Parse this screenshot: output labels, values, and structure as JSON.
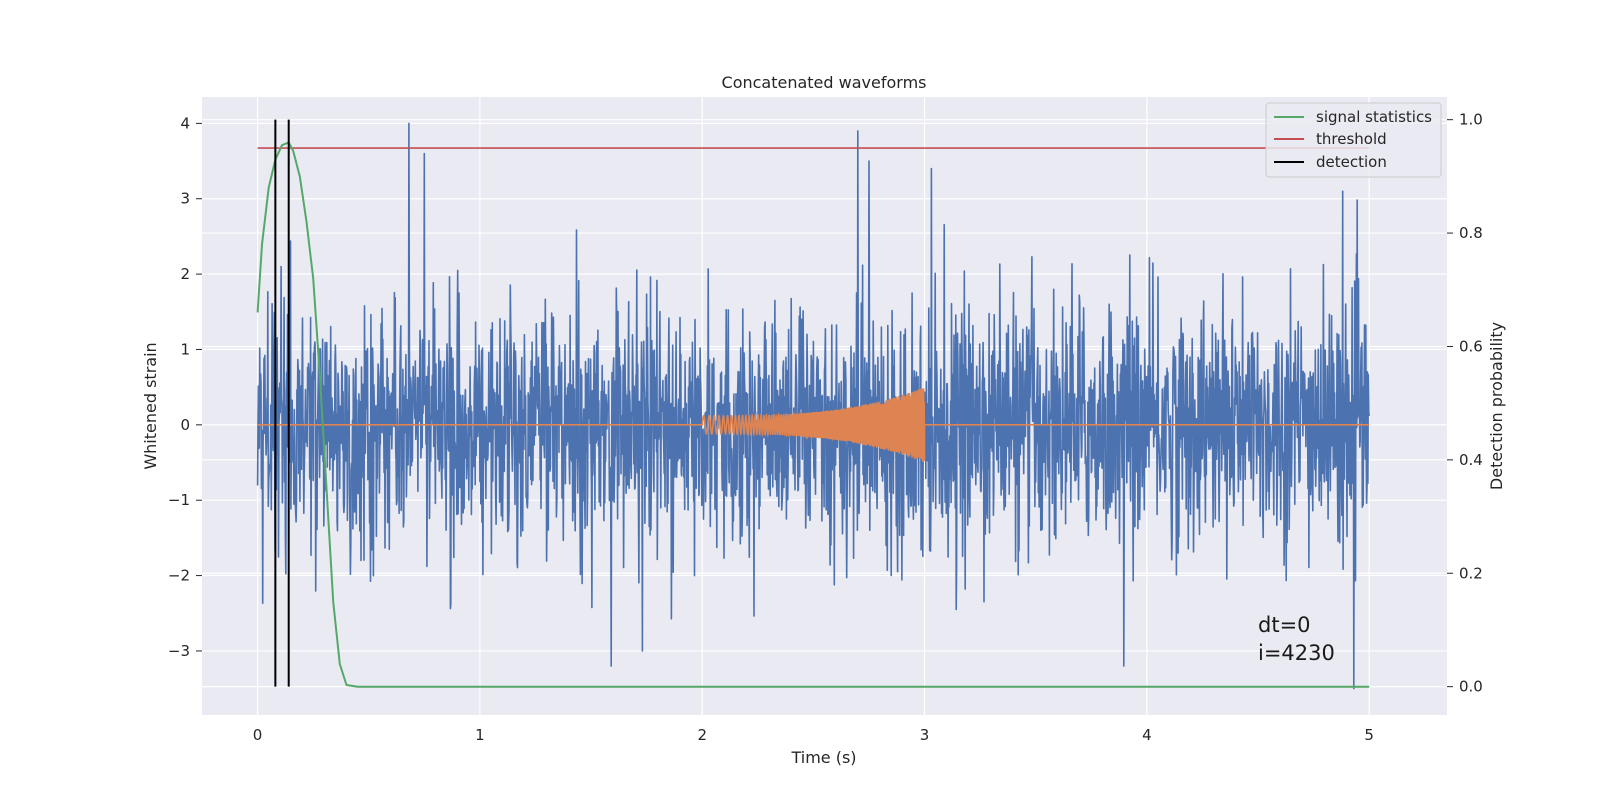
{
  "chart_data": {
    "type": "line",
    "title": "Concatenated waveforms",
    "xlabel": "Time (s)",
    "ylabel": "Whitened strain",
    "ylabel_right": "Detection probability",
    "xlim": [
      -0.25,
      5.35
    ],
    "ylim": [
      -3.85,
      4.35
    ],
    "ylim_right": [
      -0.05,
      1.04
    ],
    "x_ticks": [
      0,
      1,
      2,
      3,
      4,
      5
    ],
    "x_tick_labels": [
      "0",
      "1",
      "2",
      "3",
      "4",
      "5"
    ],
    "y_ticks": [
      -3,
      -2,
      -1,
      0,
      1,
      2,
      3,
      4
    ],
    "y_tick_labels": [
      "−3",
      "−2",
      "−1",
      "0",
      "1",
      "2",
      "3",
      "4"
    ],
    "y_right_ticks": [
      0.0,
      0.2,
      0.4,
      0.6,
      0.8,
      1.0
    ],
    "y_right_tick_labels": [
      "0.0",
      "0.2",
      "0.4",
      "0.6",
      "0.8",
      "1.0"
    ],
    "grid": true,
    "legend_position": "top-right",
    "colors": {
      "background": "#eaeaf2",
      "grid": "#ffffff",
      "strain": "#4c72b0",
      "injection": "#dd8452",
      "signal_statistics": "#55a868",
      "threshold": "#c44e52",
      "detection": "#000000"
    },
    "series": [
      {
        "name": "",
        "axis": "left",
        "description": "whitened strain noise",
        "x_range": [
          0,
          5
        ],
        "typical_envelope": [
          -1.6,
          1.6
        ],
        "peaks": [
          {
            "x": 0.68,
            "y": 4.0
          },
          {
            "x": 0.75,
            "y": 3.6
          },
          {
            "x": 2.7,
            "y": 3.9
          },
          {
            "x": 2.75,
            "y": 3.5
          },
          {
            "x": 3.03,
            "y": 3.4
          },
          {
            "x": 4.88,
            "y": 3.1
          },
          {
            "x": 1.73,
            "y": -3.0
          },
          {
            "x": 4.93,
            "y": -3.5
          }
        ]
      },
      {
        "name": "",
        "axis": "left",
        "description": "injected chirp",
        "x_range": [
          0,
          5
        ],
        "chirp_start": 2.0,
        "chirp_end": 3.0,
        "amplitude_start": 0.12,
        "amplitude_end": 0.5
      },
      {
        "name": "signal statistics",
        "axis": "right",
        "x": [
          0.0,
          0.02,
          0.05,
          0.08,
          0.11,
          0.14,
          0.16,
          0.19,
          0.22,
          0.25,
          0.28,
          0.31,
          0.34,
          0.37,
          0.4,
          0.45,
          1.0,
          2.0,
          3.0,
          4.0,
          5.0
        ],
        "y": [
          0.66,
          0.78,
          0.88,
          0.93,
          0.955,
          0.96,
          0.945,
          0.9,
          0.82,
          0.72,
          0.55,
          0.35,
          0.15,
          0.04,
          0.003,
          0.0,
          0.0,
          0.0,
          0.0,
          0.0,
          0.0
        ]
      },
      {
        "name": "threshold",
        "axis": "right",
        "x": [
          0,
          5
        ],
        "y": [
          0.95,
          0.95
        ]
      },
      {
        "name": "detection",
        "axis": "right",
        "x": [
          0.08,
          0.14
        ],
        "y_range": [
          0,
          1.0
        ]
      }
    ],
    "legend": [
      "signal statistics",
      "threshold",
      "detection"
    ],
    "annotations": [
      "dt=0",
      "i=4230"
    ]
  }
}
